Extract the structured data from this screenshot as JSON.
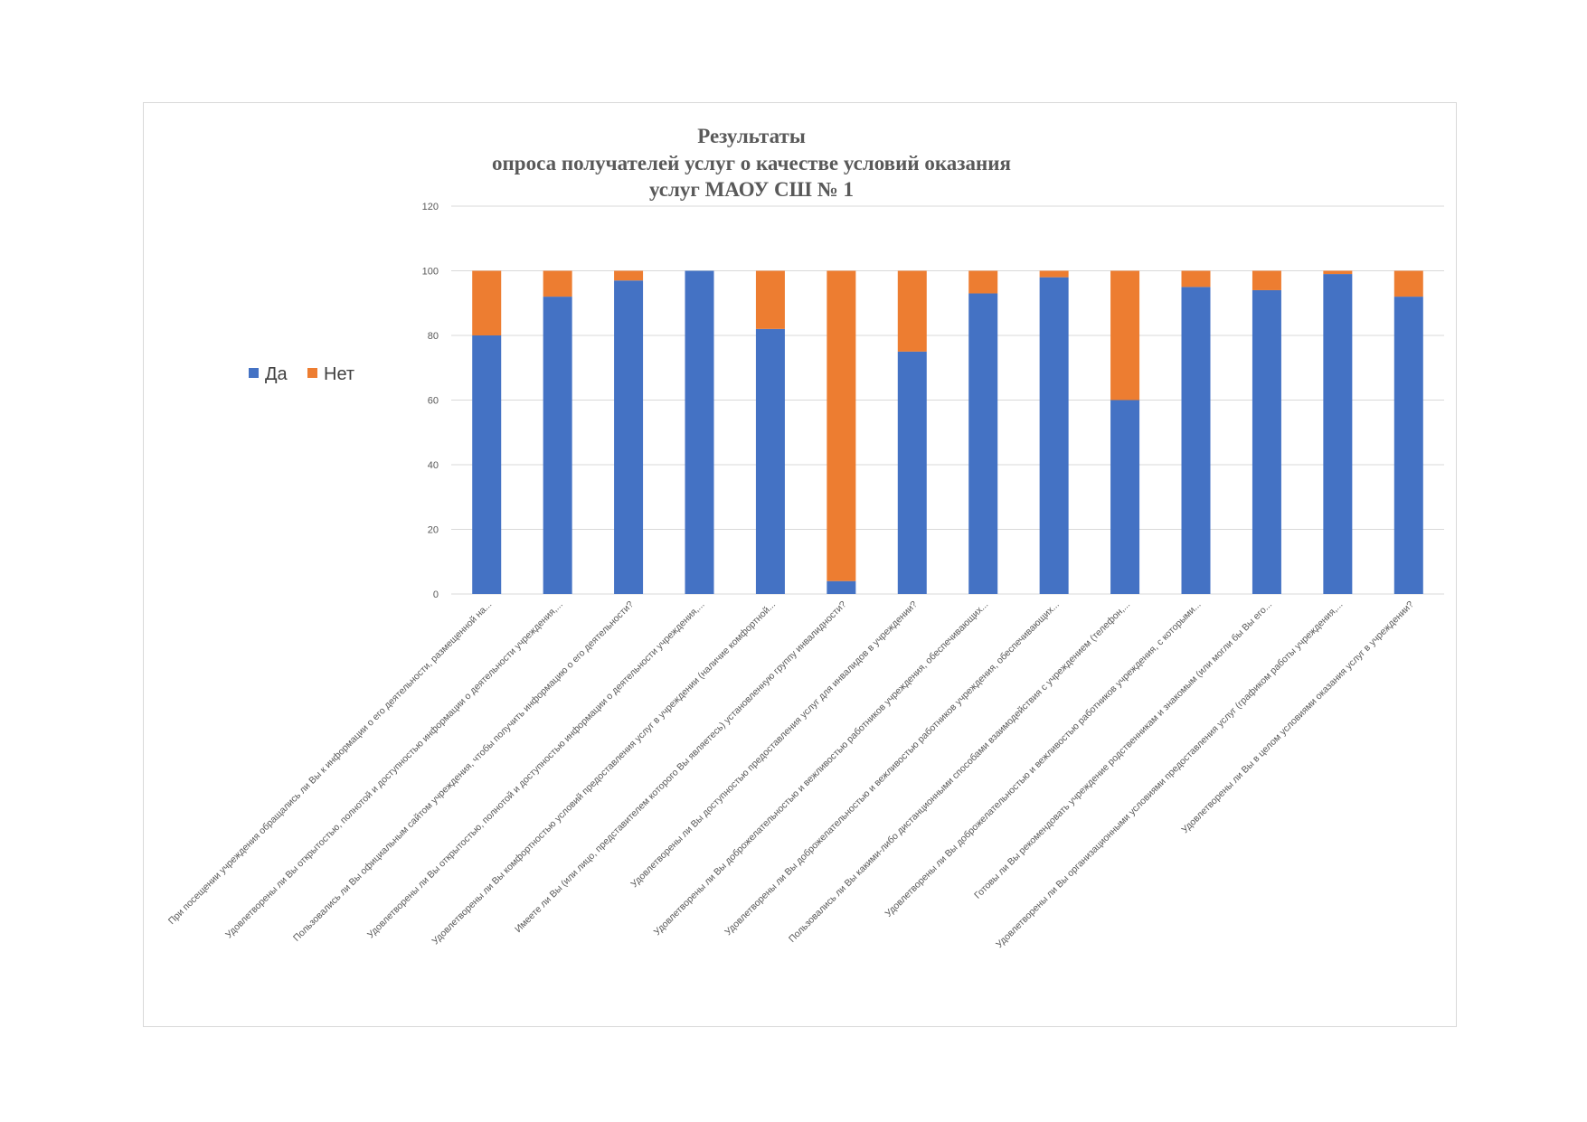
{
  "chart_data": {
    "type": "bar",
    "stacked": true,
    "title": [
      "Результаты",
      "опроса получателей услуг о качестве условий оказания",
      "услуг МАОУ СШ № 1"
    ],
    "xlabel": "",
    "ylabel": "",
    "ylim": [
      0,
      120
    ],
    "yticks": [
      0,
      20,
      40,
      60,
      80,
      100,
      120
    ],
    "grid": true,
    "legend_position": "left",
    "categories": [
      "При посещении учреждения обращались ли Вы к информации о его деятельности, размещенной на...",
      "Удовлетворены ли Вы открытостью, полнотой и доступностью информации о деятельности учреждения,...",
      "Пользовались ли Вы официальным сайтом учреждения, чтобы получить информацию о его деятельности?",
      "Удовлетворены ли Вы открытостью, полнотой и доступностью информации о деятельности учреждения,...",
      "Удовлетворены ли Вы комфортностью условий предоставления услуг в учреждении (наличие комфортной...",
      "Имеете ли Вы (или лицо, представителем которого Вы являетесь) установленную группу инвалидности?",
      "Удовлетворены ли Вы доступностью предоставления услуг для инвалидов в учреждении?",
      "Удовлетворены ли Вы доброжелательностью и вежливостью работников учреждения, обеспечивающих...",
      "Удовлетворены ли Вы доброжелательностью и вежливостью работников учреждения, обеспечивающих...",
      "Пользовались ли Вы какими-либо дистанционными способами взаимодействия с учреждением (телефон,...",
      "Удовлетворены ли Вы доброжелательностью и вежливостью работников учреждения, с которыми...",
      "Готовы ли Вы рекомендовать учреждение родственникам и знакомым (или могли бы Вы его...",
      "Удовлетворены ли Вы организационными условиями предоставления услуг (графиком работы учреждения,...",
      "Удовлетворены ли Вы в целом условиями оказания услуг в учреждении?"
    ],
    "series": [
      {
        "name": "Да",
        "color": "#4472c4",
        "values": [
          80,
          92,
          97,
          100,
          82,
          4,
          75,
          93,
          98,
          60,
          95,
          94,
          99,
          92
        ]
      },
      {
        "name": "Нет",
        "color": "#ed7d31",
        "values": [
          20,
          8,
          3,
          0,
          18,
          96,
          25,
          7,
          2,
          40,
          5,
          6,
          1,
          8
        ]
      }
    ],
    "grid_color": "#d9d9d9"
  }
}
